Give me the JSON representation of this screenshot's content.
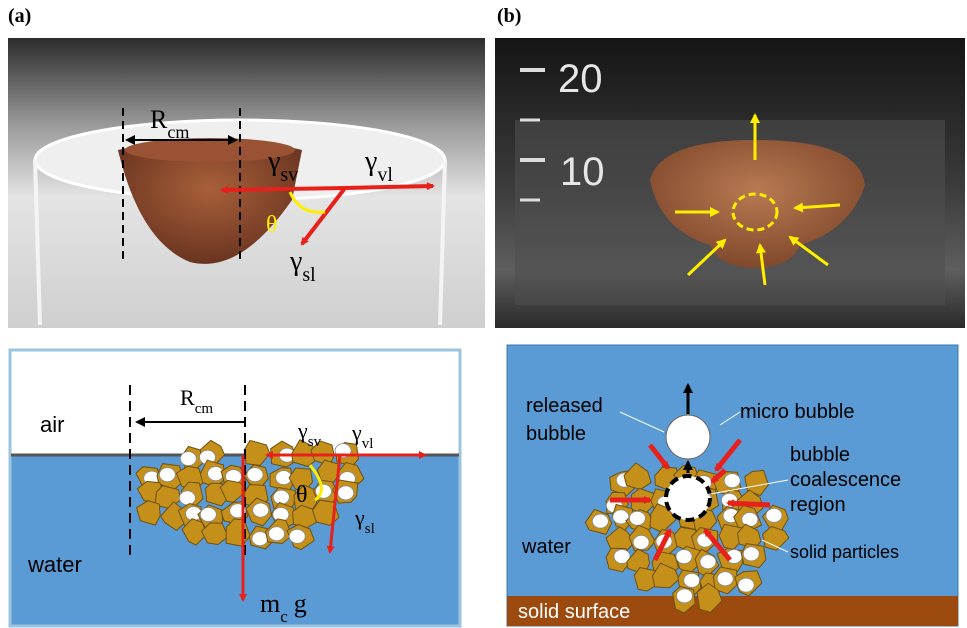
{
  "panel_a": {
    "label": "(a)",
    "photo": {
      "radius": {
        "base": "R",
        "sub": "cm"
      },
      "gamma_sv": {
        "base": "γ",
        "sub": "sv"
      },
      "gamma_vl": {
        "base": "γ",
        "sub": "vl"
      },
      "theta": "θ",
      "gamma_sl": {
        "base": "γ",
        "sub": "sl"
      }
    },
    "diagram": {
      "air": "air",
      "water": "water",
      "radius": {
        "base": "R",
        "sub": "cm"
      },
      "gamma_sv": {
        "base": "γ",
        "sub": "sv"
      },
      "gamma_vl": {
        "base": "γ",
        "sub": "vl"
      },
      "theta": "θ",
      "gamma_sl": {
        "base": "γ",
        "sub": "sl"
      },
      "weight": {
        "base": "m",
        "sub": "c",
        "suffix": "g"
      }
    }
  },
  "panel_b": {
    "label": "(b)",
    "photo": {
      "scale_marks": [
        "20",
        "10"
      ]
    },
    "diagram": {
      "released_bubble": [
        "released",
        "bubble"
      ],
      "micro_bubble": "micro bubble",
      "coalescence_region": [
        "bubble",
        "coalescence",
        "region"
      ],
      "water": "water",
      "solid_particles": "solid particles",
      "solid_surface": "solid surface"
    }
  }
}
